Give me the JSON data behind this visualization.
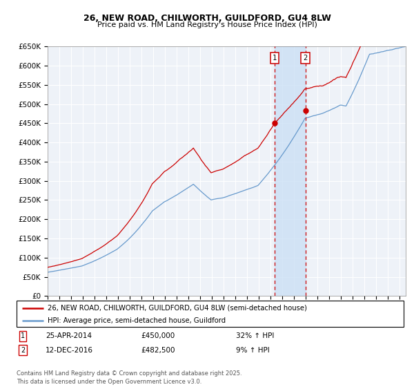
{
  "title1": "26, NEW ROAD, CHILWORTH, GUILDFORD, GU4 8LW",
  "title2": "Price paid vs. HM Land Registry's House Price Index (HPI)",
  "ylabel_ticks": [
    "£0",
    "£50K",
    "£100K",
    "£150K",
    "£200K",
    "£250K",
    "£300K",
    "£350K",
    "£400K",
    "£450K",
    "£500K",
    "£550K",
    "£600K",
    "£650K"
  ],
  "ytick_vals": [
    0,
    50000,
    100000,
    150000,
    200000,
    250000,
    300000,
    350000,
    400000,
    450000,
    500000,
    550000,
    600000,
    650000
  ],
  "hpi_color": "#6699cc",
  "price_color": "#cc0000",
  "sale1_date_num": 2014.32,
  "sale1_price": 450000,
  "sale2_date_num": 2016.95,
  "sale2_price": 482500,
  "legend_label1": "26, NEW ROAD, CHILWORTH, GUILDFORD, GU4 8LW (semi-detached house)",
  "legend_label2": "HPI: Average price, semi-detached house, Guildford",
  "note1_date": "25-APR-2014",
  "note1_price": "£450,000",
  "note1_hpi": "32% ↑ HPI",
  "note2_date": "12-DEC-2016",
  "note2_price": "£482,500",
  "note2_hpi": "9% ↑ HPI",
  "footer": "Contains HM Land Registry data © Crown copyright and database right 2025.\nThis data is licensed under the Open Government Licence v3.0.",
  "xmin": 1995.0,
  "xmax": 2025.5,
  "ymin": 0,
  "ymax": 650000,
  "chart_bg": "#eef2f8",
  "grid_color": "white"
}
